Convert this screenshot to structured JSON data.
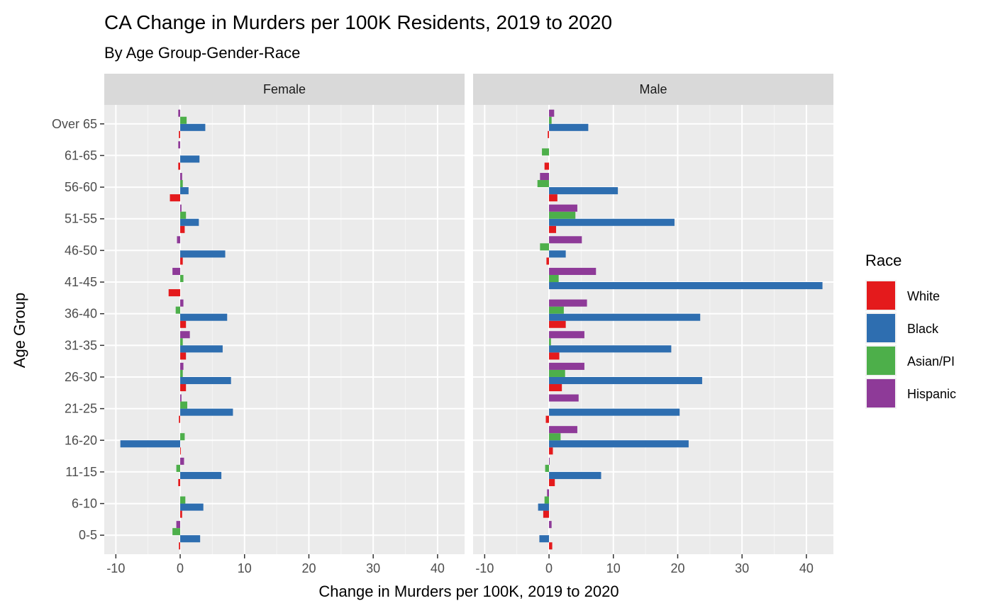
{
  "chart_data": {
    "type": "bar",
    "orientation": "horizontal",
    "title": "CA Change in Murders per 100K Residents, 2019 to 2020",
    "subtitle": "By Age Group-Gender-Race",
    "xlabel": "Change in Murders per 100K, 2019 to 2020",
    "ylabel": "Age Group",
    "xlim": [
      -11.8,
      44.2
    ],
    "x_ticks": [
      -10,
      0,
      10,
      20,
      30,
      40
    ],
    "x_tick_labels": [
      "-10",
      "0",
      "10",
      "20",
      "30",
      "40"
    ],
    "grid": true,
    "categories": [
      "0-5",
      "6-10",
      "11-15",
      "16-20",
      "21-25",
      "26-30",
      "31-35",
      "36-40",
      "41-45",
      "46-50",
      "51-55",
      "56-60",
      "61-65",
      "Over 65"
    ],
    "legend": {
      "title": "Race",
      "position": "right",
      "entries": [
        {
          "name": "White",
          "color": "#E41A1C"
        },
        {
          "name": "Black",
          "color": "#2E6EB0"
        },
        {
          "name": "Asian/PI",
          "color": "#4DAF4A"
        },
        {
          "name": "Hispanic",
          "color": "#8E3A98"
        }
      ]
    },
    "panels": [
      {
        "label": "Female",
        "series": [
          {
            "name": "White",
            "values": [
              -0.2,
              0.3,
              -0.3,
              0.1,
              -0.2,
              0.9,
              0.9,
              0.9,
              -1.8,
              0.4,
              0.7,
              -1.6,
              -0.3,
              -0.2
            ]
          },
          {
            "name": "Black",
            "values": [
              3.1,
              3.6,
              6.4,
              -9.3,
              8.2,
              7.9,
              6.6,
              7.3,
              0.0,
              7.0,
              2.9,
              1.3,
              3.0,
              3.9
            ]
          },
          {
            "name": "Asian/PI",
            "values": [
              -1.2,
              0.8,
              -0.6,
              0.7,
              1.1,
              0.4,
              0.4,
              -0.7,
              0.5,
              0.0,
              0.9,
              0.4,
              0.0,
              1.0
            ]
          },
          {
            "name": "Hispanic",
            "values": [
              -0.6,
              0.0,
              0.6,
              0.0,
              0.2,
              0.5,
              1.5,
              0.5,
              -1.2,
              -0.5,
              0.2,
              0.3,
              -0.3,
              -0.3
            ]
          }
        ]
      },
      {
        "label": "Male",
        "series": [
          {
            "name": "White",
            "values": [
              0.5,
              -0.9,
              0.9,
              0.6,
              -0.5,
              2.0,
              1.6,
              2.6,
              0.0,
              -0.4,
              1.1,
              1.3,
              -0.7,
              -0.2
            ]
          },
          {
            "name": "Black",
            "values": [
              -1.5,
              -1.7,
              8.1,
              21.7,
              20.3,
              23.8,
              19.0,
              23.5,
              42.5,
              2.6,
              19.5,
              10.7,
              0.0,
              6.1
            ]
          },
          {
            "name": "Asian/PI",
            "values": [
              0.0,
              -0.7,
              -0.6,
              1.8,
              0.0,
              2.5,
              0.3,
              2.3,
              1.5,
              -1.4,
              4.1,
              -1.8,
              -1.1,
              0.4
            ]
          },
          {
            "name": "Hispanic",
            "values": [
              0.4,
              -0.3,
              0.1,
              4.4,
              4.6,
              5.5,
              5.5,
              5.9,
              7.3,
              5.1,
              4.4,
              -1.4,
              0.0,
              0.8
            ]
          }
        ]
      }
    ]
  }
}
